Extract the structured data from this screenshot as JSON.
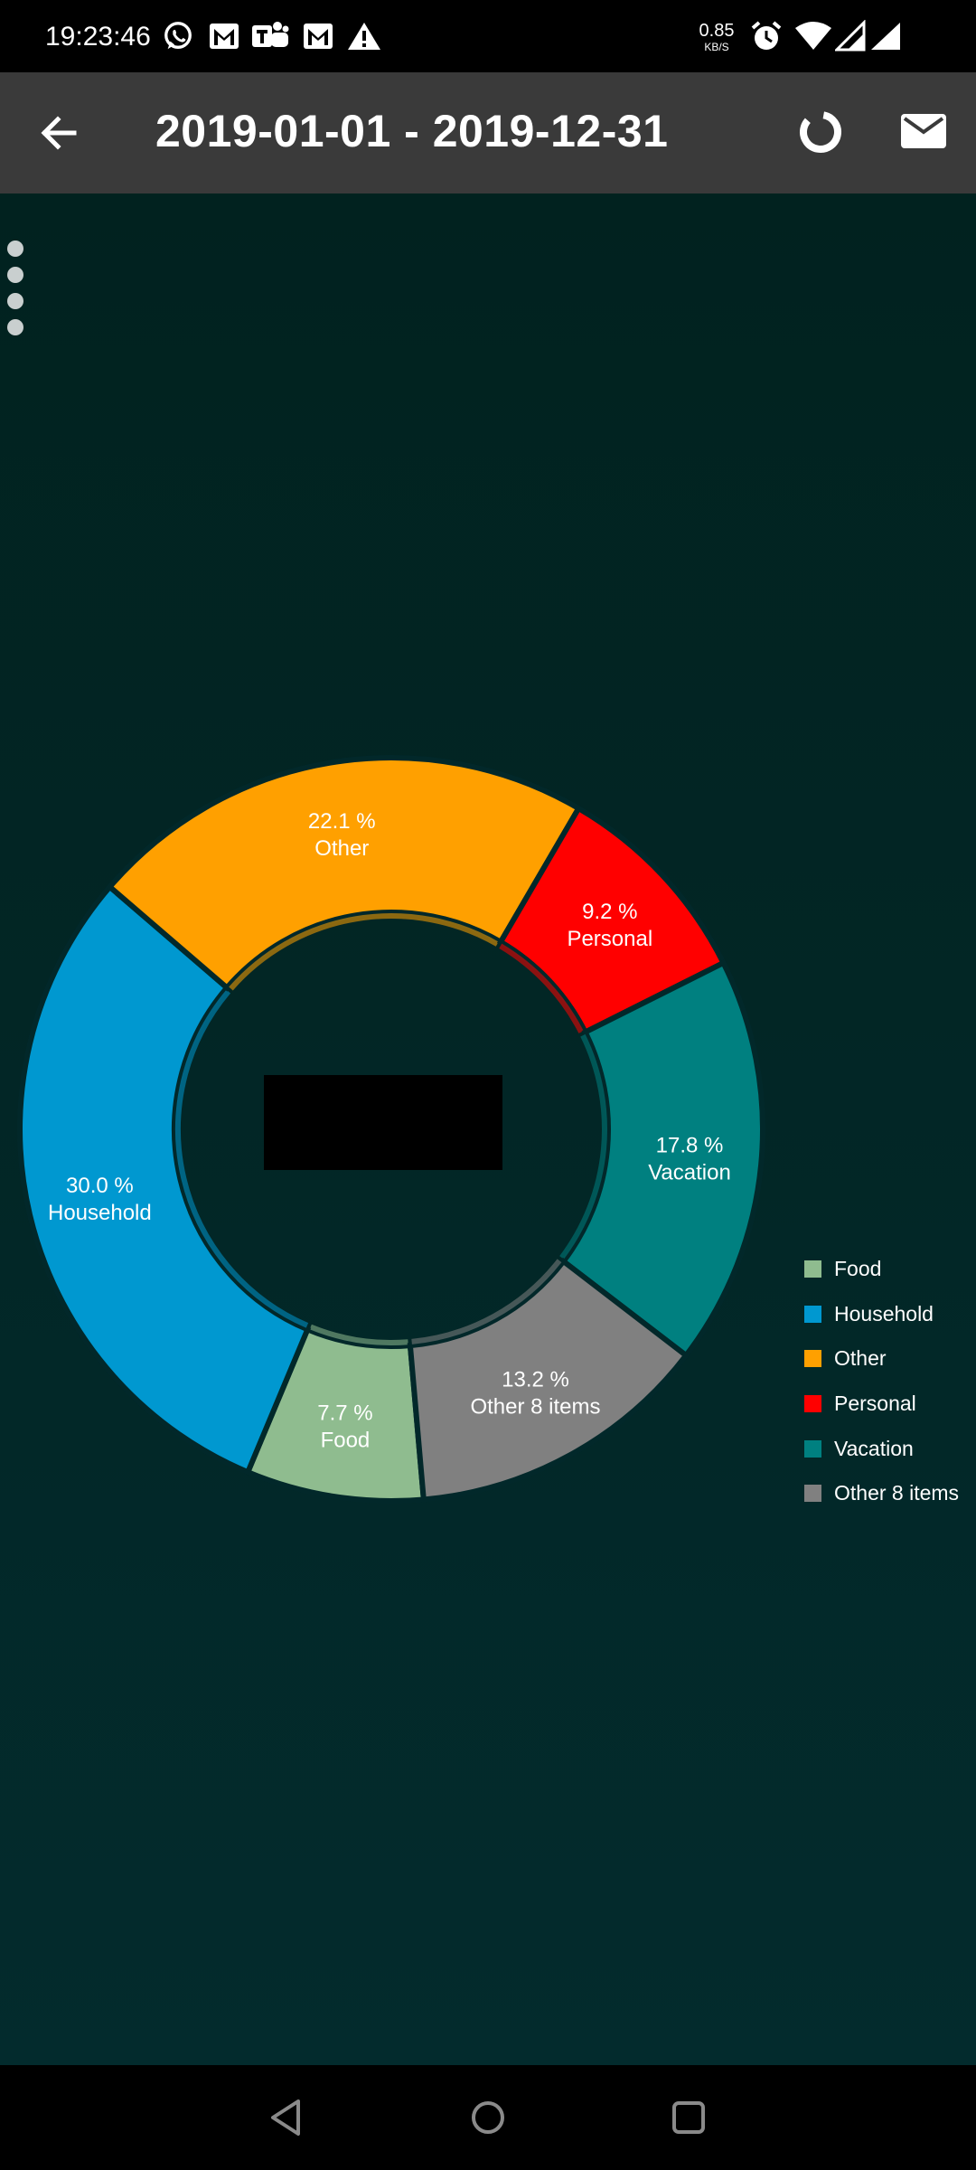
{
  "status_bar": {
    "time": "19:23:46",
    "net_speed_value": "0.85",
    "net_speed_unit": "KB/S",
    "icons": [
      "whatsapp-icon",
      "gmail-icon",
      "teams-icon",
      "gmail-icon",
      "warning-icon",
      "alarm-icon",
      "wifi-icon",
      "signal-icon",
      "signal-icon"
    ]
  },
  "app_bar": {
    "title": "2019-01-01 - 2019-12-31",
    "icons": [
      "back-arrow-icon",
      "donut-chart-icon",
      "mail-icon"
    ]
  },
  "chart_data": {
    "type": "pie",
    "style": "donut",
    "categories": [
      "Food",
      "Household",
      "Other",
      "Personal",
      "Vacation",
      "Other 8 items"
    ],
    "values": [
      7.7,
      30.0,
      22.1,
      9.2,
      17.8,
      13.2
    ],
    "colors": [
      "#8fbc8f",
      "#0098d0",
      "#ffa000",
      "#ff0000",
      "#008080",
      "#808080"
    ],
    "slice_labels": [
      "7.7 %",
      "30.0 %",
      "22.1 %",
      "9.2 %",
      "17.8 %",
      "13.2 %"
    ],
    "legend": [
      "Food",
      "Household",
      "Other",
      "Personal",
      "Vacation",
      "Other 8 items"
    ],
    "legend_placement": "right",
    "start_angle_deg": 85,
    "direction": "clockwise"
  },
  "legend": {
    "items": [
      {
        "label": "Food",
        "color": "#8fbc8f"
      },
      {
        "label": "Household",
        "color": "#0098d0"
      },
      {
        "label": "Other",
        "color": "#ffa000"
      },
      {
        "label": "Personal",
        "color": "#ff0000"
      },
      {
        "label": "Vacation",
        "color": "#008080"
      },
      {
        "label": "Other 8 items",
        "color": "#808080"
      }
    ]
  },
  "nav_bar": {
    "icons": [
      "nav-back-icon",
      "nav-home-icon",
      "nav-recents-icon"
    ]
  }
}
